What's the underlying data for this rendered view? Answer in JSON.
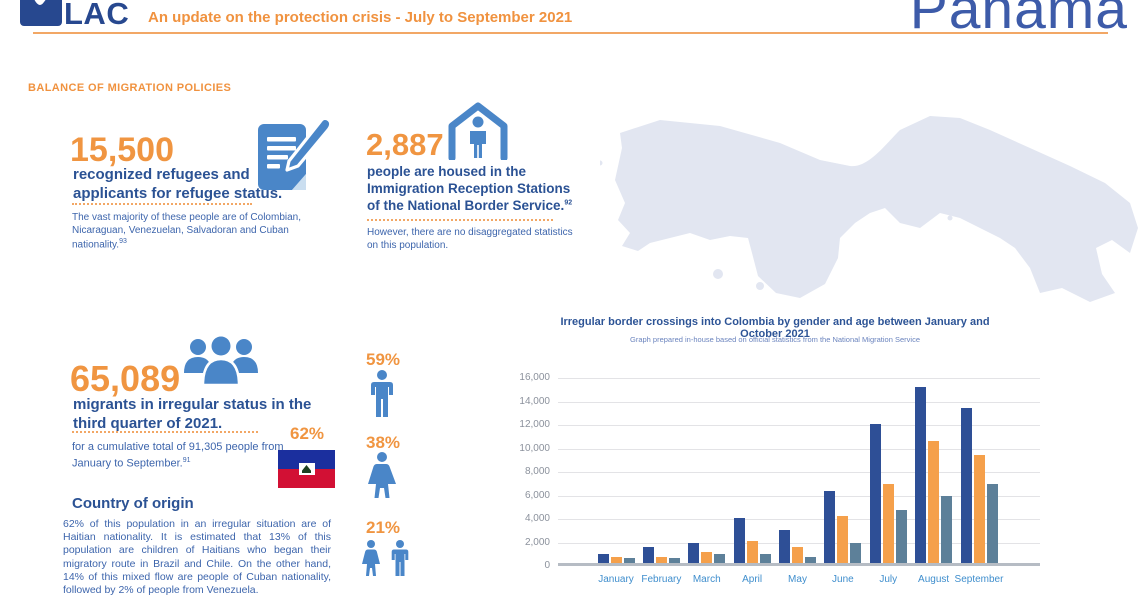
{
  "header": {
    "logo_text": "LAC",
    "title": "An update on the protection crisis - July to September 2021",
    "country": "Panama"
  },
  "section_title": "BALANCE OF MIGRATION POLICIES",
  "stats": {
    "refugees": {
      "value": "15,500",
      "label": "recognized refugees and applicants for refugee status.",
      "note": "The vast majority of these people are of Colombian, Nicaraguan, Venezuelan, Salvadoran and Cuban nationality.",
      "note_sup": "93"
    },
    "housed": {
      "value": "2,887",
      "label": "people are housed in the Immigration Reception Stations of the National Border Service.",
      "label_sup": "92",
      "note": "However, there are no disaggregated statistics on this population."
    },
    "migrants": {
      "value": "65,089",
      "label": "migrants in irregular status in the third quarter of 2021.",
      "note": "for a cumulative total of 91,305 people from January to September.",
      "note_sup": "91"
    }
  },
  "demographics": {
    "haiti_share": "62%",
    "men_pct": "59%",
    "women_pct": "38%",
    "children_pct": "21%"
  },
  "country_of_origin": {
    "heading": "Country of origin",
    "body": "62% of this population in an irregular situation are of Haitian nationality. It is estimated that 13% of this population are children of Haitians who began their migratory route in Brazil and Chile. On the other hand, 14% of this mixed flow are people of Cuban nationality, followed by 2% of people from Venezuela."
  },
  "chart_data": {
    "type": "bar",
    "title": "Irregular border crossings into Colombia by gender and age between January and October 2021",
    "subtitle": "Graph prepared in-house based on official statistics from the National Migration Service",
    "categories": [
      "January",
      "February",
      "March",
      "April",
      "May",
      "June",
      "July",
      "August",
      "September"
    ],
    "series": [
      {
        "name": "navy",
        "color": "#2E4F96",
        "values": [
          800,
          1400,
          1700,
          3800,
          2800,
          6100,
          11800,
          15000,
          13200
        ]
      },
      {
        "name": "orange",
        "color": "#F5A04B",
        "values": [
          500,
          550,
          950,
          1900,
          1400,
          4000,
          6700,
          10400,
          9200
        ]
      },
      {
        "name": "slate",
        "color": "#5D8099",
        "values": [
          400,
          400,
          800,
          800,
          550,
          1700,
          4500,
          5700,
          6700
        ]
      }
    ],
    "ylim": [
      0,
      16000
    ],
    "ytick_step": 2000,
    "grid": true,
    "legend": "none"
  },
  "colors": {
    "accent_orange": "#F09541",
    "brand_blue": "#2B5294",
    "icon_blue": "#4A86C8",
    "map_fill": "#E2E6F1",
    "haiti_blue": "#1B2F9E",
    "haiti_red": "#D21034"
  }
}
